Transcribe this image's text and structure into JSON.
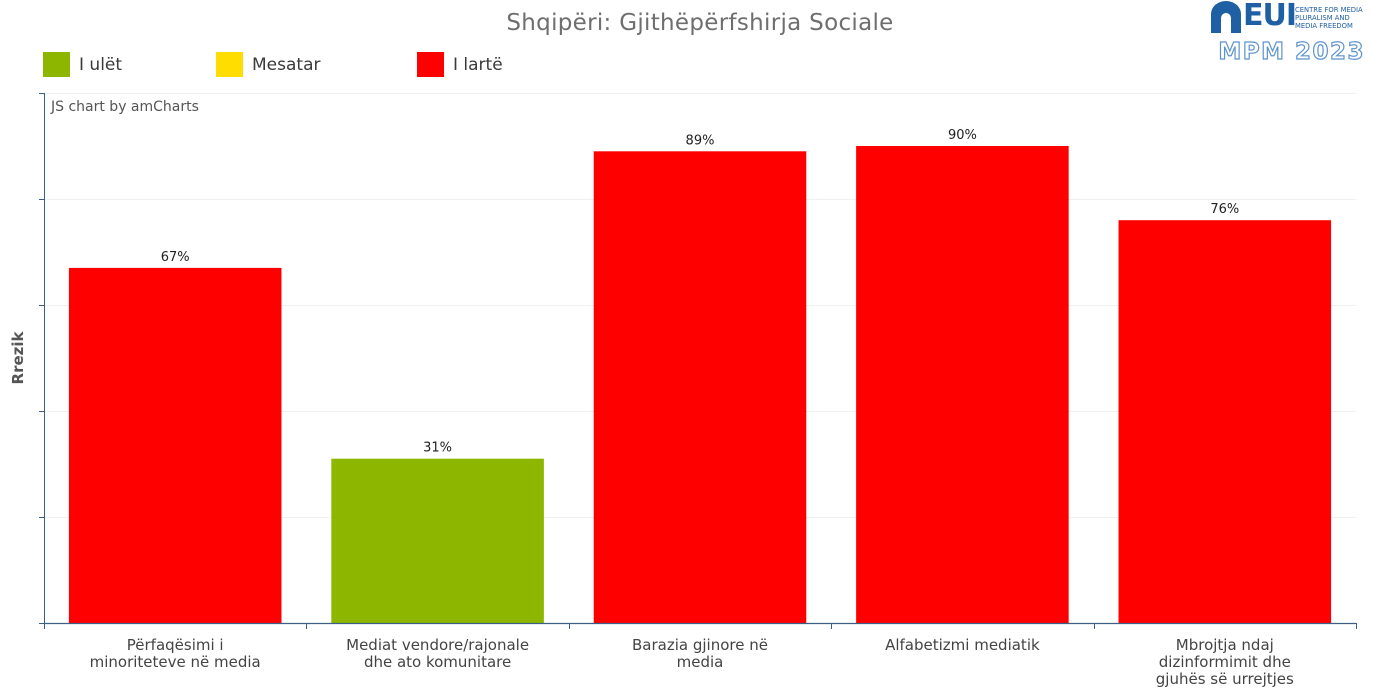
{
  "title": "Shqipëri: Gjithëpërfshirja Sociale",
  "legend": [
    {
      "label": "I ulët",
      "color": "#8db600"
    },
    {
      "label": "Mesatar",
      "color": "#ffdd00"
    },
    {
      "label": "I lartë",
      "color": "#ff0000"
    }
  ],
  "logo": {
    "brand": "EUI",
    "tagline": [
      "CENTRE FOR MEDIA",
      "PLURALISM AND",
      "MEDIA FREEDOM"
    ],
    "edition": "MPM 2023"
  },
  "credit": "JS chart by amCharts",
  "chart_data": {
    "type": "bar",
    "title": "Shqipëri: Gjithëpërfshirja Sociale",
    "ylabel": "Rrezik",
    "xlabel": "",
    "ylim": [
      0,
      100
    ],
    "grid": true,
    "legend_placement": "top-left",
    "categories": [
      [
        "Përfaqësimi i",
        "minoriteteve në media"
      ],
      [
        "Mediat vendore/rajonale",
        "dhe ato komunitare"
      ],
      [
        "Barazia gjinore në",
        "media"
      ],
      [
        "Alfabetizmi mediatik"
      ],
      [
        "Mbrojtja ndaj",
        "dizinformimit dhe",
        "gjuhës së urrejtjes"
      ]
    ],
    "values": [
      67,
      31,
      89,
      90,
      76
    ],
    "labels": [
      "67%",
      "31%",
      "89%",
      "90%",
      "76%"
    ],
    "colors": [
      "#ff0000",
      "#8db600",
      "#ff0000",
      "#ff0000",
      "#ff0000"
    ]
  }
}
